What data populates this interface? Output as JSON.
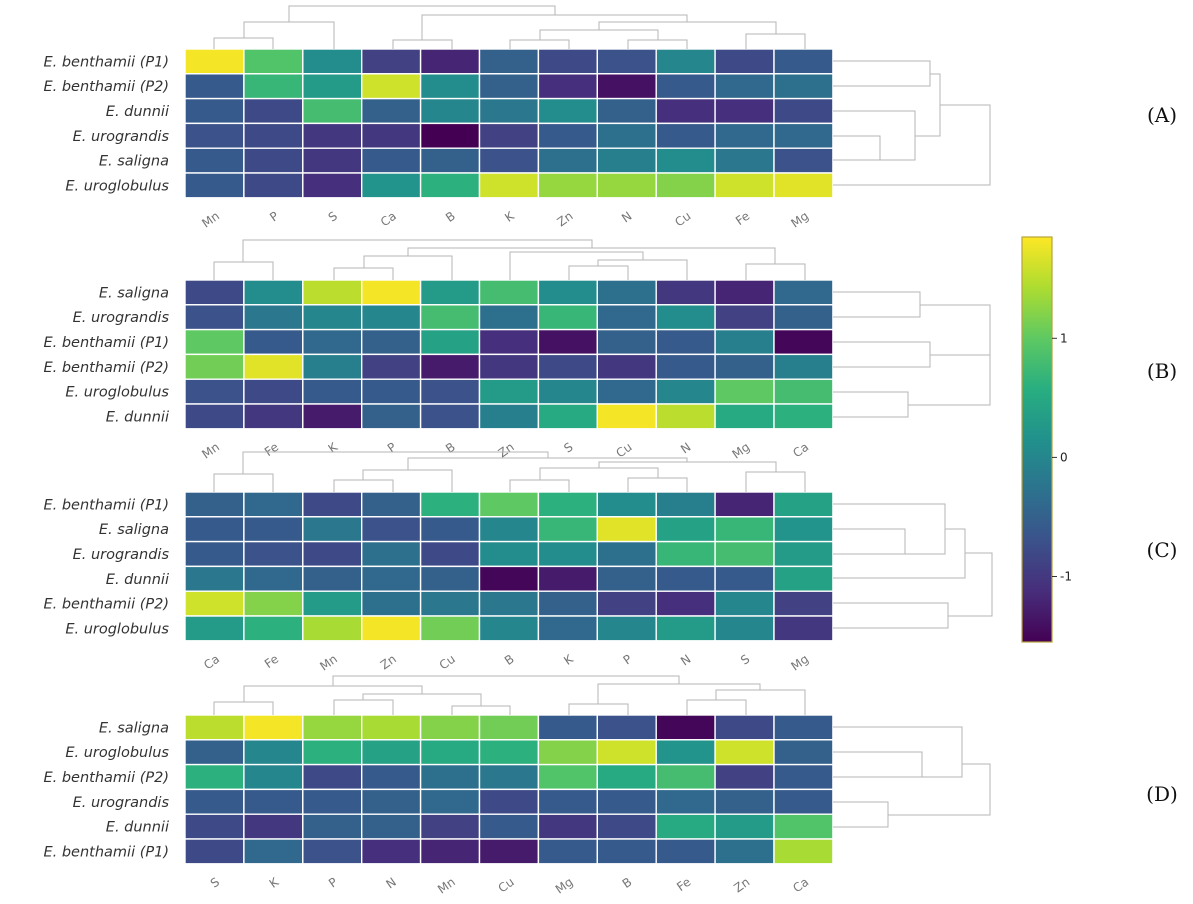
{
  "chart_data": [
    {
      "type": "heatmap",
      "panel_label": "(A)",
      "rows": [
        "E. benthamii (P1)",
        "E. benthamii (P2)",
        "E. dunnii",
        "E. urograndis",
        "E. saligna",
        "E. uroglobulus"
      ],
      "columns": [
        "Mn",
        "P",
        "S",
        "Ca",
        "B",
        "K",
        "Zn",
        "N",
        "Cu",
        "Fe",
        "Mg"
      ],
      "values": [
        [
          1.8,
          0.9,
          0.1,
          -0.9,
          -1.2,
          -0.5,
          -0.8,
          -0.7,
          0.0,
          -0.8,
          -0.6
        ],
        [
          -0.6,
          0.7,
          0.3,
          1.6,
          0.1,
          -0.5,
          -1.1,
          -1.4,
          -0.6,
          -0.4,
          -0.3
        ],
        [
          -0.6,
          -0.8,
          0.8,
          -0.5,
          0.0,
          -0.2,
          0.1,
          -0.5,
          -1.1,
          -1.1,
          -0.8
        ],
        [
          -0.7,
          -0.8,
          -1.0,
          -1.0,
          -1.6,
          -0.9,
          -0.6,
          -0.3,
          -0.6,
          -0.4,
          -0.4
        ],
        [
          -0.6,
          -0.8,
          -1.0,
          -0.6,
          -0.5,
          -0.7,
          -0.3,
          -0.1,
          0.1,
          -0.2,
          -0.7
        ],
        [
          -0.6,
          -0.8,
          -1.1,
          0.2,
          0.6,
          1.6,
          1.3,
          1.3,
          1.2,
          1.6,
          1.7
        ]
      ]
    },
    {
      "type": "heatmap",
      "panel_label": "(B)",
      "rows": [
        "E. saligna",
        "E. urograndis",
        "E. benthamii (P1)",
        "E. benthamii (P2)",
        "E. uroglobulus",
        "E. dunnii"
      ],
      "columns": [
        "Mn",
        "Fe",
        "K",
        "P",
        "B",
        "Zn",
        "S",
        "Cu",
        "N",
        "Mg",
        "Ca"
      ],
      "values": [
        [
          -0.8,
          0.1,
          1.5,
          1.8,
          0.3,
          0.8,
          0.1,
          -0.3,
          -1.0,
          -1.2,
          -0.4
        ],
        [
          -0.7,
          -0.2,
          0.0,
          0.0,
          0.8,
          -0.3,
          0.7,
          -0.4,
          0.1,
          -0.9,
          -0.5
        ],
        [
          1.0,
          -0.6,
          -0.4,
          -0.5,
          0.4,
          -1.1,
          -1.4,
          -0.5,
          -0.6,
          -0.1,
          -1.5
        ],
        [
          1.1,
          1.7,
          -0.1,
          -0.9,
          -1.3,
          -1.0,
          -0.8,
          -1.0,
          -0.6,
          -0.5,
          -0.1
        ],
        [
          -0.7,
          -0.8,
          -0.6,
          -0.6,
          -0.7,
          0.3,
          0.0,
          -0.4,
          0.0,
          1.0,
          0.8
        ],
        [
          -0.8,
          -1.0,
          -1.3,
          -0.5,
          -0.7,
          -0.1,
          0.5,
          1.8,
          1.5,
          0.5,
          0.6
        ]
      ]
    },
    {
      "type": "heatmap",
      "panel_label": "(C)",
      "rows": [
        "E. benthamii (P1)",
        "E. saligna",
        "E. urograndis",
        "E. dunnii",
        "E. benthamii (P2)",
        "E. uroglobulus"
      ],
      "columns": [
        "Ca",
        "Fe",
        "Mn",
        "Zn",
        "Cu",
        "B",
        "K",
        "P",
        "N",
        "S",
        "Mg"
      ],
      "values": [
        [
          -0.5,
          -0.4,
          -0.8,
          -0.5,
          0.6,
          1.0,
          0.6,
          0.1,
          -0.1,
          -1.2,
          0.4
        ],
        [
          -0.6,
          -0.6,
          -0.2,
          -0.7,
          -0.6,
          0.0,
          0.7,
          1.7,
          0.4,
          0.7,
          0.2
        ],
        [
          -0.6,
          -0.7,
          -0.8,
          -0.3,
          -0.8,
          0.1,
          0.1,
          -0.3,
          0.7,
          0.8,
          0.3
        ],
        [
          -0.2,
          -0.4,
          -0.5,
          -0.4,
          -0.5,
          -1.5,
          -1.3,
          -0.5,
          -0.6,
          -0.6,
          0.4
        ],
        [
          1.6,
          1.2,
          0.3,
          -0.3,
          -0.2,
          -0.2,
          -0.5,
          -0.9,
          -1.1,
          0.0,
          -0.9
        ],
        [
          0.3,
          0.6,
          1.4,
          1.8,
          1.1,
          0.0,
          -0.4,
          0.0,
          0.3,
          0.0,
          -1.0
        ]
      ]
    },
    {
      "type": "heatmap",
      "panel_label": "(D)",
      "rows": [
        "E. saligna",
        "E. uroglobulus",
        "E. benthamii (P2)",
        "E. urograndis",
        "E. dunnii",
        "E. benthamii (P1)"
      ],
      "columns": [
        "S",
        "K",
        "P",
        "N",
        "Mn",
        "Cu",
        "Mg",
        "B",
        "Fe",
        "Zn",
        "Ca"
      ],
      "values": [
        [
          1.5,
          1.8,
          1.3,
          1.4,
          1.2,
          1.1,
          -0.6,
          -0.7,
          -1.5,
          -0.8,
          -0.6
        ],
        [
          -0.5,
          0.0,
          0.6,
          0.4,
          0.5,
          0.6,
          1.2,
          1.6,
          0.2,
          1.6,
          -0.5
        ],
        [
          0.6,
          0.0,
          -0.8,
          -0.6,
          -0.3,
          -0.2,
          0.9,
          0.5,
          0.8,
          -0.9,
          -0.6
        ],
        [
          -0.6,
          -0.6,
          -0.6,
          -0.5,
          -0.4,
          -0.8,
          -0.6,
          -0.6,
          -0.4,
          -0.5,
          -0.6
        ],
        [
          -0.8,
          -1.0,
          -0.5,
          -0.5,
          -0.9,
          -0.6,
          -1.0,
          -0.8,
          0.5,
          0.3,
          0.9
        ],
        [
          -0.8,
          -0.4,
          -0.7,
          -1.1,
          -1.2,
          -1.3,
          -0.6,
          -0.6,
          -0.6,
          -0.3,
          1.4
        ]
      ]
    }
  ],
  "colorbar": {
    "colormap": "viridis",
    "range": [
      -1.55,
      1.85
    ],
    "ticks": [
      {
        "value": 1,
        "label": "1"
      },
      {
        "value": 0,
        "label": "0"
      },
      {
        "value": -1,
        "label": "-1"
      }
    ]
  }
}
